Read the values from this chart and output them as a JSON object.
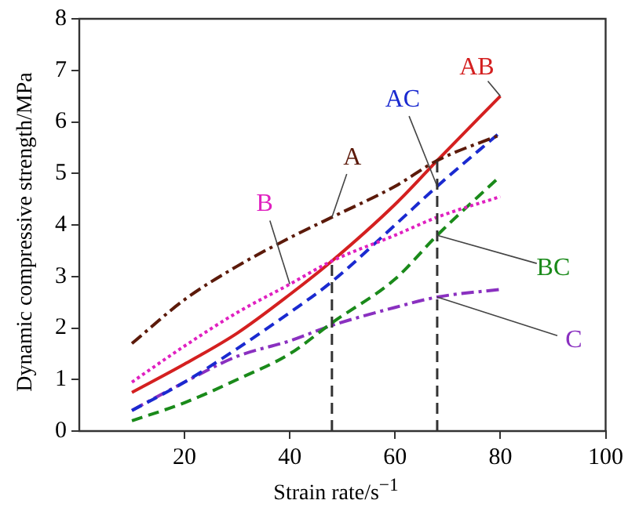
{
  "chart_data": {
    "type": "line",
    "xlabel": "Strain rate/s$^{−1}$",
    "ylabel": "Dynamic compressive strength/MPa",
    "x": [
      10,
      20,
      30,
      40,
      48,
      60,
      68,
      80
    ],
    "xlim": [
      0,
      100
    ],
    "xticks": [
      20,
      40,
      60,
      80,
      100
    ],
    "ylim": [
      0,
      8
    ],
    "yticks": [
      0,
      1,
      2,
      3,
      4,
      5,
      6,
      7,
      8
    ],
    "grid": false,
    "legend": false,
    "marker": "none",
    "series": [
      {
        "name": "A",
        "color": "#5c1a0a",
        "line_style": "dashdot",
        "values": [
          1.7,
          2.55,
          3.2,
          3.75,
          4.15,
          4.75,
          5.25,
          5.75
        ]
      },
      {
        "name": "B",
        "color": "#e020c0",
        "line_style": "dotted",
        "values": [
          0.95,
          1.65,
          2.3,
          2.85,
          3.3,
          3.8,
          4.15,
          4.55
        ]
      },
      {
        "name": "AB",
        "color": "#d42020",
        "line_style": "solid",
        "values": [
          0.75,
          1.3,
          1.9,
          2.65,
          3.3,
          4.4,
          5.25,
          6.5
        ]
      },
      {
        "name": "AC",
        "color": "#1a2ad0",
        "line_style": "dashed",
        "values": [
          0.4,
          0.95,
          1.6,
          2.3,
          2.9,
          4.0,
          4.75,
          5.8
        ]
      },
      {
        "name": "BC",
        "color": "#1a8a1a",
        "line_style": "dashed",
        "values": [
          0.2,
          0.55,
          1.0,
          1.5,
          2.1,
          2.95,
          3.8,
          4.95
        ]
      },
      {
        "name": "C",
        "color": "#8a30c0",
        "line_style": "dashdot",
        "values": [
          0.4,
          0.95,
          1.45,
          1.75,
          2.05,
          2.4,
          2.6,
          2.75
        ]
      }
    ],
    "ref_lines": [
      {
        "axis": "x",
        "value": 48,
        "color": "#333333",
        "line_style": "dashed"
      },
      {
        "axis": "x",
        "value": 68,
        "color": "#333333",
        "line_style": "dashed"
      }
    ]
  }
}
